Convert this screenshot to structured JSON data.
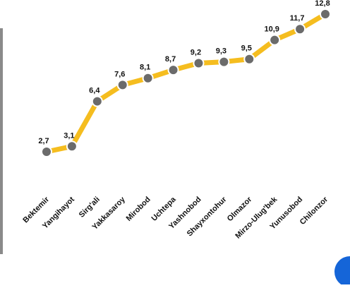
{
  "chart_data": {
    "type": "line",
    "categories": [
      "Bektemir",
      "Yangihayot",
      "Sirg'ali",
      "Yakkasaroy",
      "Mirobod",
      "Uchtepa",
      "Yashnobod",
      "Shayxontohur",
      "Olmazor",
      "Mirzo-Ulug'bek",
      "Yunusobod",
      "Chilonzor"
    ],
    "values": [
      2.7,
      3.1,
      6.4,
      7.6,
      8.1,
      8.7,
      9.2,
      9.3,
      9.5,
      10.9,
      11.7,
      12.8
    ],
    "value_labels": [
      "2,7",
      "3,1",
      "6,4",
      "7,6",
      "8,1",
      "8,7",
      "9,2",
      "9,3",
      "9,5",
      "10,9",
      "11,7",
      "12,8"
    ],
    "color": "#f5bd1f",
    "marker_color": "#6b6b6b"
  }
}
